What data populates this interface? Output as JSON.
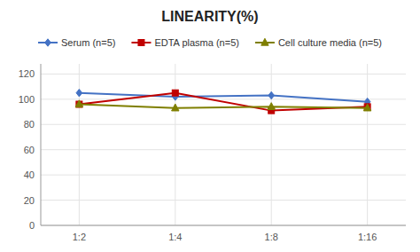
{
  "chart_data": {
    "type": "line",
    "title": "LINEARITY(%)",
    "categories": [
      "1:2",
      "1:4",
      "1:8",
      "1:16"
    ],
    "series": [
      {
        "name": "Serum (n=5)",
        "color": "#4472C4",
        "marker": "diamond",
        "values": [
          105,
          102,
          103,
          98
        ]
      },
      {
        "name": "EDTA plasma (n=5)",
        "color": "#C00000",
        "marker": "square",
        "values": [
          96,
          105,
          91,
          94
        ]
      },
      {
        "name": "Cell culture media (n=5)",
        "color": "#7F7F00",
        "marker": "triangle",
        "values": [
          96,
          93,
          94,
          93
        ]
      }
    ],
    "ylim": [
      0,
      128
    ],
    "yticks": [
      0,
      20,
      40,
      60,
      80,
      100,
      120
    ],
    "grid": true,
    "legend": "top"
  }
}
